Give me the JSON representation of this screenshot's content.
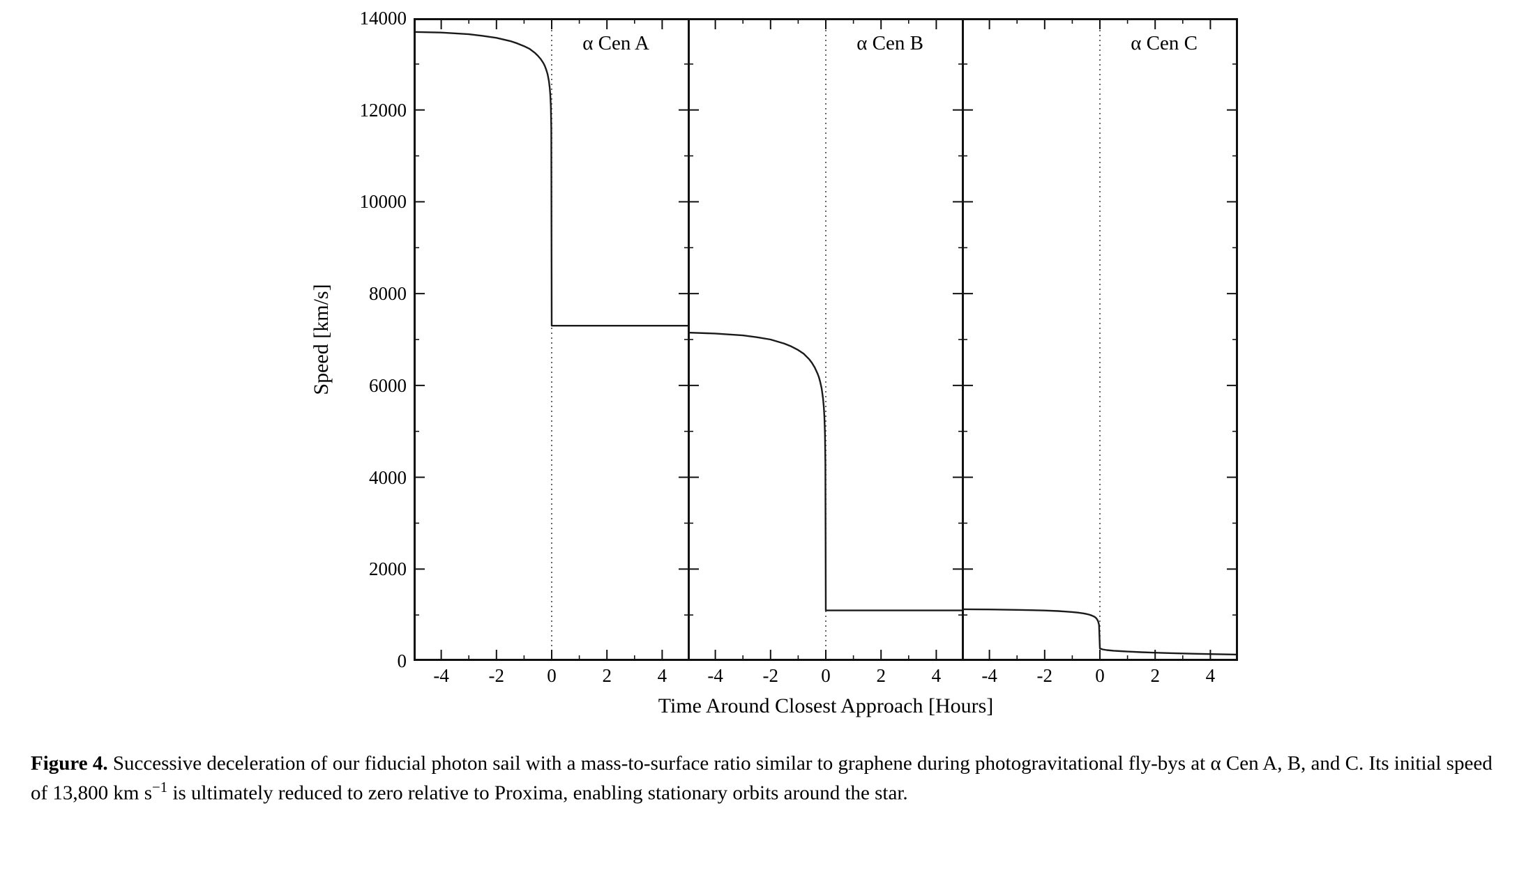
{
  "caption": {
    "label": "Figure 4.",
    "text_before_sup": " Successive deceleration of our fiducial photon sail with a mass-to-surface ratio similar to graphene during photogravitational fly-bys at α Cen A, B, and C. Its initial speed of 13,800 km s",
    "sup": "−1",
    "text_after_sup": " is ultimately reduced to zero relative to Proxima, enabling stationary orbits around the star."
  },
  "chart_data": {
    "type": "line",
    "title": "",
    "xlabel": "Time Around Closest Approach [Hours]",
    "ylabel": "Speed [km/s]",
    "xlim": [
      -5,
      5
    ],
    "ylim": [
      0,
      14000
    ],
    "x_ticks": [
      -4,
      -2,
      0,
      2,
      4
    ],
    "x_minor_ticks": [
      -3,
      -1,
      1,
      3
    ],
    "y_ticks": [
      0,
      2000,
      4000,
      6000,
      8000,
      10000,
      12000,
      14000
    ],
    "y_minor_ticks": [
      1000,
      3000,
      5000,
      7000,
      9000,
      11000,
      13000
    ],
    "grid": false,
    "legend": "none",
    "line_color": "#1a1a1a",
    "vline_style": "dotted",
    "initial_speed_km_s": 13800,
    "panels": [
      {
        "label": "α Cen A",
        "vline_x": 0,
        "plateau_before": 13700,
        "plateau_after": 7300,
        "series": {
          "x": [
            -5,
            -4,
            -3,
            -2.5,
            -2,
            -1.5,
            -1.25,
            -1,
            -0.8,
            -0.6,
            -0.5,
            -0.4,
            -0.3,
            -0.25,
            -0.2,
            -0.15,
            -0.1,
            -0.07,
            -0.05,
            -0.03,
            -0.015,
            0,
            0.5,
            1,
            2,
            3,
            4,
            5
          ],
          "y": [
            13700,
            13685,
            13650,
            13615,
            13570,
            13500,
            13450,
            13390,
            13330,
            13240,
            13180,
            13110,
            13020,
            12960,
            12880,
            12780,
            12630,
            12480,
            12330,
            12080,
            11600,
            7300,
            7300,
            7300,
            7300,
            7300,
            7300,
            7300
          ]
        }
      },
      {
        "label": "α Cen B",
        "vline_x": 0,
        "plateau_before": 7150,
        "plateau_after": 1100,
        "series": {
          "x": [
            -5,
            -4,
            -3,
            -2.5,
            -2,
            -1.5,
            -1.25,
            -1,
            -0.8,
            -0.6,
            -0.5,
            -0.4,
            -0.3,
            -0.25,
            -0.2,
            -0.15,
            -0.1,
            -0.07,
            -0.05,
            -0.03,
            -0.015,
            0,
            0.5,
            1,
            2,
            3,
            4,
            5
          ],
          "y": [
            7150,
            7130,
            7090,
            7050,
            7000,
            6910,
            6850,
            6770,
            6690,
            6570,
            6490,
            6390,
            6260,
            6180,
            6070,
            5930,
            5720,
            5520,
            5310,
            4950,
            4300,
            1100,
            1100,
            1100,
            1100,
            1100,
            1100,
            1100
          ]
        }
      },
      {
        "label": "α Cen C",
        "vline_x": 0,
        "plateau_before": 1120,
        "plateau_after": 140,
        "series": {
          "x": [
            -5,
            -4,
            -3,
            -2.5,
            -2,
            -1.5,
            -1,
            -0.8,
            -0.6,
            -0.5,
            -0.4,
            -0.3,
            -0.2,
            -0.15,
            -0.1,
            -0.06,
            -0.03,
            0,
            0.1,
            0.25,
            0.5,
            0.75,
            1,
            1.5,
            2,
            2.5,
            3,
            3.5,
            4,
            4.5,
            5
          ],
          "y": [
            1125,
            1120,
            1112,
            1106,
            1098,
            1085,
            1065,
            1052,
            1035,
            1024,
            1010,
            990,
            962,
            940,
            905,
            855,
            780,
            270,
            250,
            235,
            222,
            212,
            204,
            190,
            179,
            170,
            162,
            155,
            149,
            143,
            138
          ]
        }
      }
    ]
  }
}
